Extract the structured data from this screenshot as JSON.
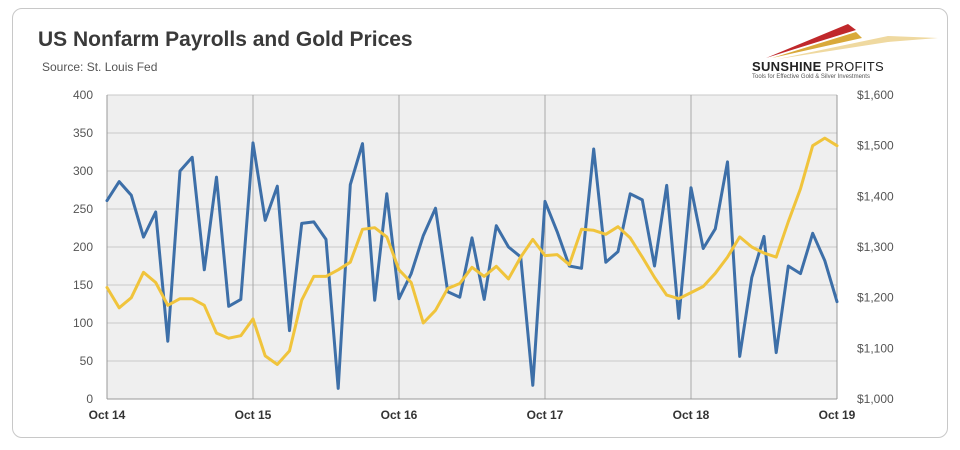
{
  "header": {
    "title": "US Nonfarm Payrolls and Gold Prices",
    "source": "Source: St. Louis Fed"
  },
  "logo": {
    "name_bold": "SUNSHINE",
    "name_light": " PROFITS",
    "tagline": "Tools for Effective Gold & Silver Investments"
  },
  "chart_data": {
    "type": "line",
    "title": "US Nonfarm Payrolls and Gold Prices",
    "x_ticks": [
      "Oct 14",
      "Oct 15",
      "Oct 16",
      "Oct 17",
      "Oct 18",
      "Oct 19"
    ],
    "x_range": [
      "2014-10",
      "2019-10"
    ],
    "y_left": {
      "range": [
        0,
        400
      ],
      "ticks": [
        0,
        50,
        100,
        150,
        200,
        250,
        300,
        350,
        400
      ]
    },
    "y_right": {
      "range": [
        1000,
        1600
      ],
      "ticks": [
        "$1,000",
        "$1,100",
        "$1,200",
        "$1,300",
        "$1,400",
        "$1,500",
        "$1,600"
      ]
    },
    "grid": "on",
    "legend": "none",
    "colors": {
      "payrolls": "#3d6fa8",
      "gold": "#f0c43c",
      "plot_bg": "#efefef",
      "grid": "#c9c9c9"
    },
    "series": [
      {
        "axis": "left",
        "color": "#3d6fa8",
        "values": [
          261,
          286,
          268,
          213,
          246,
          76,
          300,
          318,
          170,
          292,
          122,
          131,
          337,
          235,
          280,
          90,
          231,
          233,
          210,
          14,
          282,
          336,
          130,
          270,
          132,
          165,
          215,
          251,
          141,
          134,
          212,
          131,
          228,
          200,
          187,
          18,
          260,
          220,
          175,
          172,
          329,
          180,
          194,
          270,
          262,
          175,
          281,
          106,
          278,
          198,
          224,
          312,
          56,
          160,
          214,
          61,
          175,
          165,
          218,
          182,
          128
        ]
      },
      {
        "axis": "right",
        "color": "#f0c43c",
        "values": [
          1220,
          1180,
          1200,
          1250,
          1230,
          1185,
          1198,
          1198,
          1185,
          1130,
          1120,
          1125,
          1158,
          1085,
          1068,
          1095,
          1195,
          1242,
          1242,
          1255,
          1270,
          1335,
          1338,
          1320,
          1255,
          1230,
          1150,
          1175,
          1218,
          1228,
          1260,
          1242,
          1262,
          1237,
          1280,
          1315,
          1283,
          1285,
          1265,
          1335,
          1333,
          1325,
          1340,
          1318,
          1280,
          1240,
          1205,
          1198,
          1210,
          1222,
          1248,
          1280,
          1320,
          1300,
          1288,
          1280,
          1350,
          1415,
          1500,
          1515,
          1500
        ]
      }
    ]
  }
}
